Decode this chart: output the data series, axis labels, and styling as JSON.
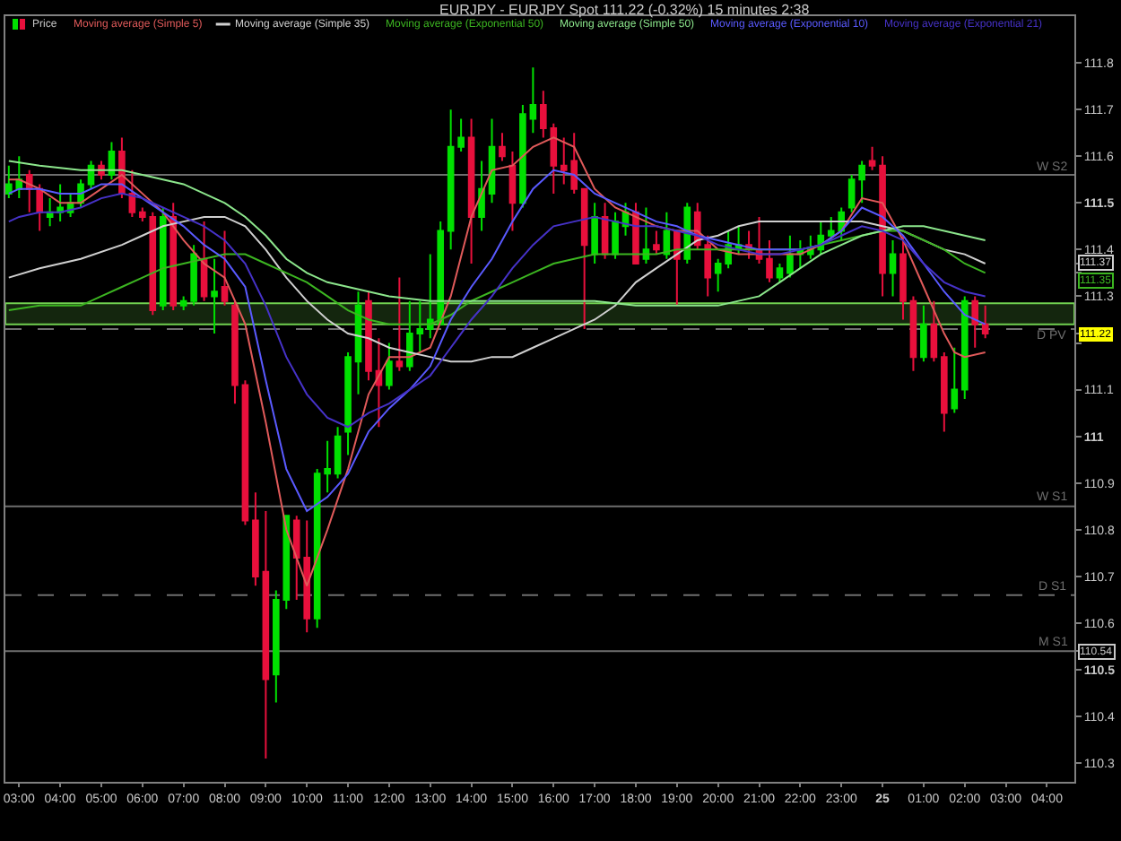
{
  "chart_data": {
    "type": "candlestick",
    "title": "EURJPY - EURJPY Spot 111.22 (-0.32%) 15 minutes 2:38",
    "xlim": [
      "--01-24T02:40",
      "--01-25T04:40"
    ],
    "ylim": [
      110.26,
      111.9
    ],
    "xticks": [
      {
        "value": "--01-24T03:00",
        "label": "03:00"
      },
      {
        "value": "--01-24T04:00",
        "label": "04:00"
      },
      {
        "value": "--01-24T05:00",
        "label": "05:00"
      },
      {
        "value": "--01-24T06:00",
        "label": "06:00"
      },
      {
        "value": "--01-24T07:00",
        "label": "07:00"
      },
      {
        "value": "--01-24T08:00",
        "label": "08:00"
      },
      {
        "value": "--01-24T09:00",
        "label": "09:00"
      },
      {
        "value": "--01-24T10:00",
        "label": "10:00"
      },
      {
        "value": "--01-24T11:00",
        "label": "11:00"
      },
      {
        "value": "--01-24T12:00",
        "label": "12:00"
      },
      {
        "value": "--01-24T13:00",
        "label": "13:00"
      },
      {
        "value": "--01-24T14:00",
        "label": "14:00"
      },
      {
        "value": "--01-24T15:00",
        "label": "15:00"
      },
      {
        "value": "--01-24T16:00",
        "label": "16:00"
      },
      {
        "value": "--01-24T17:00",
        "label": "17:00"
      },
      {
        "value": "--01-24T18:00",
        "label": "18:00"
      },
      {
        "value": "--01-24T19:00",
        "label": "19:00"
      },
      {
        "value": "--01-24T20:00",
        "label": "20:00"
      },
      {
        "value": "--01-24T21:00",
        "label": "21:00"
      },
      {
        "value": "--01-24T22:00",
        "label": "22:00"
      },
      {
        "value": "--01-24T23:00",
        "label": "23:00"
      },
      {
        "value": "--01-25T00:00",
        "label": "25"
      },
      {
        "value": "--01-25T01:00",
        "label": "01:00"
      },
      {
        "value": "--01-25T02:00",
        "label": "02:00"
      },
      {
        "value": "--01-25T03:00",
        "label": "03:00"
      },
      {
        "value": "--01-25T04:00",
        "label": "04:00"
      }
    ],
    "yticks": [
      110.3,
      110.4,
      110.5,
      110.54,
      110.6,
      110.7,
      110.8,
      110.9,
      111,
      111.1,
      {
        "value": 111.2,
        "label": null
      },
      111.22,
      111.3,
      111.35,
      111.37,
      111.4,
      111.5,
      111.6,
      111.7,
      111.8
    ],
    "legend": "top left",
    "ref_lines": [
      {
        "axis": "y",
        "value": 111.56,
        "label": "W S2",
        "color": "#6e6e6e"
      },
      {
        "axis": "y",
        "value": 111.23,
        "label": "D PV",
        "color": "#6e6e6e",
        "line_style": "dashed"
      },
      {
        "axis": "y",
        "value": 110.85,
        "label": "W S1",
        "color": "#6e6e6e"
      },
      {
        "axis": "y",
        "value": 110.66,
        "label": "D S1",
        "color": "#6e6e6e",
        "line_style": "dashed"
      },
      {
        "axis": "y",
        "value": 110.54,
        "label": "M S1",
        "color": "#6e6e6e"
      }
    ],
    "bands": [
      {
        "axis": "y",
        "from": 111.24,
        "to": 111.285,
        "color": "#70d050"
      }
    ],
    "series": [
      {
        "name": "Price",
        "x": [
          "--01-24T02:45",
          "--01-24T03:00",
          "--01-24T03:15",
          "--01-24T03:30",
          "--01-24T03:45",
          "--01-24T04:00",
          "--01-24T04:15",
          "--01-24T04:30",
          "--01-24T04:45",
          "--01-24T05:00",
          "--01-24T05:15",
          "--01-24T05:30",
          "--01-24T05:45",
          "--01-24T06:00",
          "--01-24T06:15",
          "--01-24T06:30",
          "--01-24T06:45",
          "--01-24T07:00",
          "--01-24T07:15",
          "--01-24T07:30",
          "--01-24T07:45",
          "--01-24T08:00",
          "--01-24T08:15",
          "--01-24T08:30",
          "--01-24T08:45",
          "--01-24T09:00",
          "--01-24T09:15",
          "--01-24T09:30",
          "--01-24T09:45",
          "--01-24T10:00",
          "--01-24T10:15",
          "--01-24T10:30",
          "--01-24T10:45",
          "--01-24T11:00",
          "--01-24T11:15",
          "--01-24T11:30",
          "--01-24T11:45",
          "--01-24T12:00",
          "--01-24T12:15",
          "--01-24T12:30",
          "--01-24T12:45",
          "--01-24T13:00",
          "--01-24T13:15",
          "--01-24T13:30",
          "--01-24T13:45",
          "--01-24T14:00",
          "--01-24T14:15",
          "--01-24T14:30",
          "--01-24T14:45",
          "--01-24T15:00",
          "--01-24T15:15",
          "--01-24T15:30",
          "--01-24T15:45",
          "--01-24T16:00",
          "--01-24T16:15",
          "--01-24T16:30",
          "--01-24T16:45",
          "--01-24T17:00",
          "--01-24T17:15",
          "--01-24T17:30",
          "--01-24T17:45",
          "--01-24T18:00",
          "--01-24T18:15",
          "--01-24T18:30",
          "--01-24T18:45",
          "--01-24T19:00",
          "--01-24T19:15",
          "--01-24T19:30",
          "--01-24T19:45",
          "--01-24T20:00",
          "--01-24T20:15",
          "--01-24T20:30",
          "--01-24T20:45",
          "--01-24T21:00",
          "--01-24T21:15",
          "--01-24T21:30",
          "--01-24T21:45",
          "--01-24T22:00",
          "--01-24T22:15",
          "--01-24T22:30",
          "--01-24T22:45",
          "--01-24T23:00",
          "--01-24T23:15",
          "--01-24T23:30",
          "--01-24T23:45",
          "--01-25T00:00",
          "--01-25T00:15",
          "--01-25T00:30",
          "--01-25T00:45",
          "--01-25T01:00",
          "--01-25T01:15",
          "--01-25T01:30",
          "--01-25T01:45",
          "--01-25T02:00",
          "--01-25T02:15",
          "--01-25T02:30"
        ],
        "ohlc": [
          [
            111.52,
            111.58,
            111.51,
            111.54
          ],
          [
            111.53,
            111.6,
            111.51,
            111.55
          ],
          [
            111.56,
            111.57,
            111.48,
            111.53
          ],
          [
            111.53,
            111.54,
            111.44,
            111.48
          ],
          [
            111.47,
            111.51,
            111.45,
            111.48
          ],
          [
            111.48,
            111.54,
            111.46,
            111.49
          ],
          [
            111.48,
            111.52,
            111.47,
            111.5
          ],
          [
            111.5,
            111.55,
            111.49,
            111.54
          ],
          [
            111.54,
            111.59,
            111.53,
            111.58
          ],
          [
            111.58,
            111.59,
            111.55,
            111.56
          ],
          [
            111.56,
            111.63,
            111.55,
            111.61
          ],
          [
            111.61,
            111.64,
            111.51,
            111.52
          ],
          [
            111.52,
            111.57,
            111.47,
            111.48
          ],
          [
            111.48,
            111.49,
            111.46,
            111.47
          ],
          [
            111.47,
            111.48,
            111.26,
            111.27
          ],
          [
            111.28,
            111.49,
            111.27,
            111.47
          ],
          [
            111.47,
            111.5,
            111.27,
            111.28
          ],
          [
            111.28,
            111.3,
            111.27,
            111.29
          ],
          [
            111.29,
            111.41,
            111.28,
            111.39
          ],
          [
            111.38,
            111.46,
            111.29,
            111.3
          ],
          [
            111.3,
            111.38,
            111.22,
            111.31
          ],
          [
            111.32,
            111.44,
            111.28,
            111.29
          ],
          [
            111.28,
            111.29,
            111.07,
            111.11
          ],
          [
            111.11,
            111.12,
            110.81,
            110.82
          ],
          [
            110.82,
            110.88,
            110.68,
            110.7
          ],
          [
            110.71,
            110.84,
            110.31,
            110.48
          ],
          [
            110.49,
            110.67,
            110.43,
            110.65
          ],
          [
            110.65,
            110.83,
            110.63,
            110.83
          ],
          [
            110.82,
            110.83,
            110.65,
            110.74
          ],
          [
            110.74,
            110.82,
            110.58,
            110.61
          ],
          [
            110.61,
            110.93,
            110.59,
            110.92
          ],
          [
            110.92,
            110.99,
            110.88,
            110.93
          ],
          [
            110.92,
            111.02,
            110.91,
            111.0
          ],
          [
            111.01,
            111.18,
            110.96,
            111.17
          ],
          [
            111.16,
            111.31,
            111.09,
            111.28
          ],
          [
            111.29,
            111.31,
            111.12,
            111.14
          ],
          [
            111.14,
            111.21,
            111.02,
            111.11
          ],
          [
            111.11,
            111.2,
            111.1,
            111.16
          ],
          [
            111.16,
            111.34,
            111.14,
            111.15
          ],
          [
            111.15,
            111.29,
            111.14,
            111.22
          ],
          [
            111.22,
            111.29,
            111.18,
            111.23
          ],
          [
            111.23,
            111.39,
            111.21,
            111.25
          ],
          [
            111.24,
            111.46,
            111.24,
            111.44
          ],
          [
            111.44,
            111.7,
            111.4,
            111.62
          ],
          [
            111.62,
            111.68,
            111.61,
            111.64
          ],
          [
            111.64,
            111.68,
            111.37,
            111.47
          ],
          [
            111.47,
            111.59,
            111.44,
            111.53
          ],
          [
            111.52,
            111.68,
            111.5,
            111.62
          ],
          [
            111.62,
            111.65,
            111.59,
            111.6
          ],
          [
            111.58,
            111.61,
            111.44,
            111.5
          ],
          [
            111.5,
            111.71,
            111.49,
            111.69
          ],
          [
            111.68,
            111.79,
            111.65,
            111.71
          ],
          [
            111.71,
            111.74,
            111.64,
            111.66
          ],
          [
            111.66,
            111.67,
            111.52,
            111.58
          ],
          [
            111.58,
            111.64,
            111.54,
            111.57
          ],
          [
            111.59,
            111.65,
            111.52,
            111.53
          ],
          [
            111.53,
            111.53,
            111.23,
            111.41
          ],
          [
            111.39,
            111.5,
            111.37,
            111.47
          ],
          [
            111.47,
            111.5,
            111.38,
            111.39
          ],
          [
            111.39,
            111.48,
            111.38,
            111.46
          ],
          [
            111.45,
            111.5,
            111.43,
            111.48
          ],
          [
            111.48,
            111.5,
            111.37,
            111.37
          ],
          [
            111.38,
            111.49,
            111.37,
            111.4
          ],
          [
            111.41,
            111.44,
            111.39,
            111.4
          ],
          [
            111.39,
            111.48,
            111.38,
            111.44
          ],
          [
            111.44,
            111.44,
            111.28,
            111.38
          ],
          [
            111.38,
            111.5,
            111.37,
            111.49
          ],
          [
            111.48,
            111.5,
            111.4,
            111.41
          ],
          [
            111.41,
            111.43,
            111.3,
            111.34
          ],
          [
            111.35,
            111.38,
            111.31,
            111.37
          ],
          [
            111.37,
            111.44,
            111.36,
            111.41
          ],
          [
            111.4,
            111.45,
            111.39,
            111.41
          ],
          [
            111.41,
            111.44,
            111.38,
            111.4
          ],
          [
            111.4,
            111.47,
            111.37,
            111.38
          ],
          [
            111.38,
            111.42,
            111.33,
            111.34
          ],
          [
            111.34,
            111.37,
            111.33,
            111.36
          ],
          [
            111.35,
            111.43,
            111.34,
            111.39
          ],
          [
            111.39,
            111.42,
            111.36,
            111.4
          ],
          [
            111.39,
            111.43,
            111.38,
            111.4
          ],
          [
            111.4,
            111.46,
            111.39,
            111.43
          ],
          [
            111.43,
            111.47,
            111.42,
            111.44
          ],
          [
            111.44,
            111.49,
            111.42,
            111.48
          ],
          [
            111.49,
            111.56,
            111.48,
            111.55
          ],
          [
            111.55,
            111.59,
            111.5,
            111.58
          ],
          [
            111.59,
            111.62,
            111.57,
            111.58
          ],
          [
            111.58,
            111.6,
            111.3,
            111.35
          ],
          [
            111.35,
            111.42,
            111.3,
            111.39
          ],
          [
            111.39,
            111.43,
            111.25,
            111.29
          ],
          [
            111.29,
            111.3,
            111.14,
            111.17
          ],
          [
            111.17,
            111.28,
            111.16,
            111.24
          ],
          [
            111.24,
            111.29,
            111.16,
            111.17
          ],
          [
            111.17,
            111.18,
            111.01,
            111.05
          ],
          [
            111.06,
            111.19,
            111.05,
            111.1
          ],
          [
            111.1,
            111.3,
            111.08,
            111.29
          ],
          [
            111.29,
            111.3,
            111.19,
            111.24
          ],
          [
            111.24,
            111.28,
            111.21,
            111.22
          ]
        ],
        "colors": [
          "#00e000",
          "#00e000",
          "#e8103c",
          "#e8103c",
          "#00e000",
          "#00e000",
          "#00e000",
          "#00e000",
          "#00e000",
          "#e8103c",
          "#00e000",
          "#e8103c",
          "#e8103c",
          "#e8103c",
          "#e8103c",
          "#00e000",
          "#e8103c",
          "#00e000",
          "#00e000",
          "#e8103c",
          "#00e000",
          "#e8103c",
          "#e8103c",
          "#e8103c",
          "#e8103c",
          "#e8103c",
          "#00e000",
          "#00e000",
          "#e8103c",
          "#e8103c",
          "#00e000",
          "#00e000",
          "#00e000",
          "#00e000",
          "#00e000",
          "#e8103c",
          "#e8103c",
          "#00e000",
          "#e8103c",
          "#00e000",
          "#00e000",
          "#00e000",
          "#00e000",
          "#00e000",
          "#00e000",
          "#e8103c",
          "#00e000",
          "#00e000",
          "#e8103c",
          "#e8103c",
          "#00e000",
          "#00e000",
          "#e8103c",
          "#e8103c",
          "#e8103c",
          "#e8103c",
          "#e8103c",
          "#00e000",
          "#e8103c",
          "#00e000",
          "#00e000",
          "#e8103c",
          "#00e000",
          "#e8103c",
          "#00e000",
          "#e8103c",
          "#00e000",
          "#e8103c",
          "#e8103c",
          "#00e000",
          "#00e000",
          "#00e000",
          "#e8103c",
          "#e8103c",
          "#e8103c",
          "#00e000",
          "#00e000",
          "#00e000",
          "#00e000",
          "#00e000",
          "#00e000",
          "#00e000",
          "#00e000",
          "#00e000",
          "#e8103c",
          "#e8103c",
          "#00e000",
          "#e8103c",
          "#e8103c",
          "#00e000",
          "#e8103c",
          "#e8103c",
          "#00e000",
          "#00e000",
          "#e8103c",
          "#e8103c"
        ]
      },
      {
        "name": "Moving average (Simple 5)",
        "type": "line",
        "color": "#e05a5a",
        "x": [
          "--01-24T02:45",
          "--01-24T03:00",
          "--01-24T03:30",
          "--01-24T04:00",
          "--01-24T04:30",
          "--01-24T05:00",
          "--01-24T05:30",
          "--01-24T06:00",
          "--01-24T06:30",
          "--01-24T07:00",
          "--01-24T07:30",
          "--01-24T08:00",
          "--01-24T08:30",
          "--01-24T09:00",
          "--01-24T09:30",
          "--01-24T10:00",
          "--01-24T10:30",
          "--01-24T11:00",
          "--01-24T11:30",
          "--01-24T12:00",
          "--01-24T12:30",
          "--01-24T13:00",
          "--01-24T13:30",
          "--01-24T14:00",
          "--01-24T14:30",
          "--01-24T15:00",
          "--01-24T15:30",
          "--01-24T16:00",
          "--01-24T16:30",
          "--01-24T17:00",
          "--01-24T17:30",
          "--01-24T18:00",
          "--01-24T18:30",
          "--01-24T19:00",
          "--01-24T19:30",
          "--01-24T20:00",
          "--01-24T20:30",
          "--01-24T21:00",
          "--01-24T21:30",
          "--01-24T22:00",
          "--01-24T22:30",
          "--01-24T23:00",
          "--01-24T23:30",
          "--01-25T00:00",
          "--01-25T00:30",
          "--01-25T01:00",
          "--01-25T01:30",
          "--01-25T01:45",
          "--01-25T02:00",
          "--01-25T02:30"
        ],
        "values": [
          111.55,
          111.55,
          111.53,
          111.5,
          111.5,
          111.53,
          111.56,
          111.52,
          111.48,
          111.42,
          111.37,
          111.34,
          111.24,
          111.03,
          110.8,
          110.68,
          110.8,
          110.93,
          111.09,
          111.17,
          111.17,
          111.19,
          111.3,
          111.47,
          111.57,
          111.58,
          111.62,
          111.64,
          111.62,
          111.53,
          111.49,
          111.47,
          111.45,
          111.44,
          111.44,
          111.4,
          111.39,
          111.39,
          111.39,
          111.39,
          111.41,
          111.44,
          111.51,
          111.5,
          111.42,
          111.32,
          111.22,
          111.18,
          111.17,
          111.18
        ]
      },
      {
        "name": "Moving average (Simple 35)",
        "type": "line",
        "color": "#d0d0d0",
        "x": [
          "--01-24T02:45",
          "--01-24T03:30",
          "--01-24T04:30",
          "--01-24T05:30",
          "--01-24T06:00",
          "--01-24T06:30",
          "--01-24T07:00",
          "--01-24T07:30",
          "--01-24T08:00",
          "--01-24T08:30",
          "--01-24T09:00",
          "--01-24T09:30",
          "--01-24T10:00",
          "--01-24T10:30",
          "--01-24T11:00",
          "--01-24T11:30",
          "--01-24T12:00",
          "--01-24T12:30",
          "--01-24T13:00",
          "--01-24T13:30",
          "--01-24T14:00",
          "--01-24T14:30",
          "--01-24T15:00",
          "--01-24T15:30",
          "--01-24T16:00",
          "--01-24T16:30",
          "--01-24T17:00",
          "--01-24T17:30",
          "--01-24T18:00",
          "--01-24T18:30",
          "--01-24T19:00",
          "--01-24T19:30",
          "--01-24T20:00",
          "--01-24T20:30",
          "--01-24T21:00",
          "--01-24T21:30",
          "--01-24T22:00",
          "--01-24T22:30",
          "--01-24T23:00",
          "--01-24T23:30",
          "--01-25T00:00",
          "--01-25T00:30",
          "--01-25T01:00",
          "--01-25T01:30",
          "--01-25T02:00",
          "--01-25T02:30"
        ],
        "values": [
          111.34,
          111.36,
          111.38,
          111.41,
          111.43,
          111.45,
          111.46,
          111.47,
          111.47,
          111.45,
          111.4,
          111.34,
          111.29,
          111.25,
          111.22,
          111.21,
          111.19,
          111.18,
          111.17,
          111.16,
          111.16,
          111.17,
          111.17,
          111.19,
          111.21,
          111.23,
          111.25,
          111.28,
          111.33,
          111.36,
          111.39,
          111.42,
          111.43,
          111.45,
          111.46,
          111.46,
          111.46,
          111.46,
          111.46,
          111.46,
          111.45,
          111.44,
          111.42,
          111.4,
          111.39,
          111.37
        ]
      },
      {
        "name": "Moving average (Exponential 50)",
        "type": "line",
        "color": "#3cb521",
        "x": [
          "--01-24T02:45",
          "--01-24T03:30",
          "--01-24T04:30",
          "--01-24T05:00",
          "--01-24T05:30",
          "--01-24T06:00",
          "--01-24T06:30",
          "--01-24T07:00",
          "--01-24T07:30",
          "--01-24T08:00",
          "--01-24T08:30",
          "--01-24T09:00",
          "--01-24T09:30",
          "--01-24T10:00",
          "--01-24T10:30",
          "--01-24T11:00",
          "--01-24T11:30",
          "--01-24T12:00",
          "--01-24T12:30",
          "--01-24T13:00",
          "--01-24T13:30",
          "--01-24T14:00",
          "--01-24T14:30",
          "--01-24T15:00",
          "--01-24T15:30",
          "--01-24T16:00",
          "--01-24T16:30",
          "--01-24T17:00",
          "--01-24T17:30",
          "--01-24T18:00",
          "--01-24T18:30",
          "--01-24T19:00",
          "--01-24T19:30",
          "--01-24T20:00",
          "--01-24T21:00",
          "--01-24T22:00",
          "--01-24T22:30",
          "--01-24T23:00",
          "--01-24T23:30",
          "--01-25T00:00",
          "--01-25T00:30",
          "--01-25T01:00",
          "--01-25T01:30",
          "--01-25T02:00",
          "--01-25T02:30"
        ],
        "values": [
          111.27,
          111.28,
          111.28,
          111.3,
          111.32,
          111.34,
          111.36,
          111.37,
          111.38,
          111.39,
          111.39,
          111.37,
          111.35,
          111.33,
          111.3,
          111.27,
          111.25,
          111.24,
          111.24,
          111.24,
          111.26,
          111.29,
          111.31,
          111.33,
          111.35,
          111.37,
          111.38,
          111.39,
          111.39,
          111.39,
          111.39,
          111.4,
          111.4,
          111.4,
          111.4,
          111.4,
          111.41,
          111.42,
          111.43,
          111.44,
          111.44,
          111.42,
          111.4,
          111.37,
          111.35
        ]
      },
      {
        "name": "Moving average (Simple 50)",
        "type": "line",
        "color": "#8ce68c",
        "x": [
          "--01-24T02:45",
          "--01-24T03:30",
          "--01-24T04:30",
          "--01-24T05:30",
          "--01-24T06:00",
          "--01-24T06:30",
          "--01-24T07:00",
          "--01-24T07:30",
          "--01-24T08:00",
          "--01-24T08:30",
          "--01-24T09:00",
          "--01-24T09:30",
          "--01-24T10:00",
          "--01-24T10:30",
          "--01-24T11:00",
          "--01-24T11:30",
          "--01-24T12:00",
          "--01-24T13:00",
          "--01-24T14:00",
          "--01-24T15:00",
          "--01-24T16:00",
          "--01-24T17:00",
          "--01-24T18:00",
          "--01-24T19:00",
          "--01-24T20:00",
          "--01-24T20:30",
          "--01-24T21:00",
          "--01-24T21:30",
          "--01-24T22:00",
          "--01-24T22:30",
          "--01-24T23:00",
          "--01-24T23:30",
          "--01-25T00:00",
          "--01-25T00:30",
          "--01-25T01:00",
          "--01-25T01:30",
          "--01-25T02:00",
          "--01-25T02:30"
        ],
        "values": [
          111.59,
          111.58,
          111.57,
          111.57,
          111.56,
          111.55,
          111.54,
          111.52,
          111.5,
          111.47,
          111.43,
          111.38,
          111.35,
          111.33,
          111.32,
          111.31,
          111.3,
          111.29,
          111.29,
          111.29,
          111.29,
          111.29,
          111.28,
          111.28,
          111.28,
          111.29,
          111.3,
          111.33,
          111.36,
          111.39,
          111.41,
          111.43,
          111.44,
          111.45,
          111.45,
          111.44,
          111.43,
          111.42
        ]
      },
      {
        "name": "Moving average (Exponential 10)",
        "type": "line",
        "color": "#5a5aff",
        "x": [
          "--01-24T02:45",
          "--01-24T03:00",
          "--01-24T03:30",
          "--01-24T04:00",
          "--01-24T04:30",
          "--01-24T05:00",
          "--01-24T05:30",
          "--01-24T06:00",
          "--01-24T06:30",
          "--01-24T07:00",
          "--01-24T07:30",
          "--01-24T08:00",
          "--01-24T08:30",
          "--01-24T09:00",
          "--01-24T09:30",
          "--01-24T10:00",
          "--01-24T10:30",
          "--01-24T11:00",
          "--01-24T11:30",
          "--01-24T12:00",
          "--01-24T12:30",
          "--01-24T13:00",
          "--01-24T13:30",
          "--01-24T14:00",
          "--01-24T14:30",
          "--01-24T15:00",
          "--01-24T15:30",
          "--01-24T16:00",
          "--01-24T16:30",
          "--01-24T17:00",
          "--01-24T17:30",
          "--01-24T18:00",
          "--01-24T18:30",
          "--01-24T19:00",
          "--01-24T19:30",
          "--01-24T20:00",
          "--01-24T20:30",
          "--01-24T21:00",
          "--01-24T21:30",
          "--01-24T22:00",
          "--01-24T22:30",
          "--01-24T23:00",
          "--01-24T23:30",
          "--01-25T00:00",
          "--01-25T00:30",
          "--01-25T01:00",
          "--01-25T01:30",
          "--01-25T02:00",
          "--01-25T02:30"
        ],
        "values": [
          111.52,
          111.53,
          111.53,
          111.52,
          111.52,
          111.54,
          111.54,
          111.51,
          111.48,
          111.45,
          111.41,
          111.38,
          111.32,
          111.12,
          110.93,
          110.84,
          110.87,
          110.92,
          111.01,
          111.06,
          111.1,
          111.15,
          111.25,
          111.32,
          111.38,
          111.46,
          111.53,
          111.57,
          111.56,
          111.52,
          111.5,
          111.48,
          111.46,
          111.45,
          111.43,
          111.42,
          111.41,
          111.4,
          111.4,
          111.4,
          111.41,
          111.44,
          111.49,
          111.47,
          111.43,
          111.37,
          111.31,
          111.26,
          111.24
        ]
      },
      {
        "name": "Moving average (Exponential 21)",
        "type": "line",
        "color": "#4632c8",
        "x": [
          "--01-24T02:45",
          "--01-24T03:00",
          "--01-24T03:30",
          "--01-24T04:00",
          "--01-24T04:30",
          "--01-24T05:00",
          "--01-24T05:30",
          "--01-24T06:00",
          "--01-24T06:30",
          "--01-24T07:00",
          "--01-24T07:30",
          "--01-24T08:00",
          "--01-24T08:30",
          "--01-24T09:00",
          "--01-24T09:30",
          "--01-24T10:00",
          "--01-24T10:30",
          "--01-24T11:00",
          "--01-24T11:30",
          "--01-24T12:00",
          "--01-24T12:30",
          "--01-24T13:00",
          "--01-24T13:30",
          "--01-24T14:00",
          "--01-24T14:30",
          "--01-24T15:00",
          "--01-24T15:30",
          "--01-24T16:00",
          "--01-24T16:30",
          "--01-24T17:00",
          "--01-24T17:30",
          "--01-24T18:00",
          "--01-24T18:30",
          "--01-24T19:00",
          "--01-24T19:30",
          "--01-24T20:00",
          "--01-24T20:30",
          "--01-24T21:00",
          "--01-24T21:30",
          "--01-24T22:00",
          "--01-24T22:30",
          "--01-24T23:00",
          "--01-24T23:30",
          "--01-25T00:00",
          "--01-25T00:30",
          "--01-25T01:00",
          "--01-25T01:30",
          "--01-25T02:00",
          "--01-25T02:30"
        ],
        "values": [
          111.46,
          111.47,
          111.48,
          111.48,
          111.49,
          111.51,
          111.52,
          111.51,
          111.49,
          111.47,
          111.45,
          111.42,
          111.37,
          111.28,
          111.17,
          111.09,
          111.04,
          111.02,
          111.05,
          111.07,
          111.1,
          111.13,
          111.19,
          111.25,
          111.3,
          111.36,
          111.41,
          111.45,
          111.46,
          111.47,
          111.46,
          111.45,
          111.45,
          111.44,
          111.43,
          111.41,
          111.4,
          111.39,
          111.39,
          111.4,
          111.41,
          111.43,
          111.45,
          111.44,
          111.42,
          111.37,
          111.33,
          111.31,
          111.3
        ]
      }
    ]
  }
}
